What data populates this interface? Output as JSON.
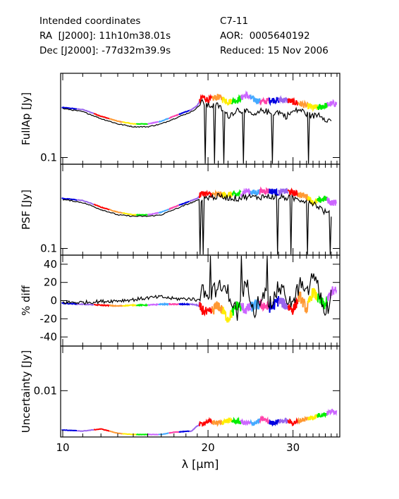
{
  "header": {
    "left": [
      "Intended coordinates",
      "RA  [J2000]: 11h10m38.01s",
      "Dec [J2000]: -77d32m39.9s"
    ],
    "right": [
      "C7-11",
      "AOR:  0005640192",
      "Reduced: 15 Nov 2006"
    ]
  },
  "chart_data": {
    "type": "line",
    "xlabel": "λ [μm]",
    "x_scale": "log",
    "xlim": [
      9.9,
      37.5
    ],
    "x_ticks": [
      10,
      20,
      30
    ],
    "x_tick_labels": [
      "10",
      "20",
      "30"
    ],
    "order_colors": [
      "#0000e0",
      "#9966ee",
      "#ff0000",
      "#ff9933",
      "#ffee00",
      "#00ee00",
      "#cc66ff",
      "#44aaff",
      "#ff44aa"
    ],
    "panels": [
      {
        "ylabel": "FullAp [Jy]",
        "y_scale": "log",
        "ylim": [
          0.088,
          0.5
        ],
        "y_ticks": [
          0.1
        ],
        "y_tick_labels": [
          "0.1"
        ],
        "series": [
          {
            "style": "colored-orders",
            "x": [
              10.0,
              11.0,
              12.0,
              13.0,
              14.0,
              15.0,
              16.0,
              17.0,
              18.5,
              19.0,
              19.5,
              20.0,
              21.0,
              22.0,
              23.0,
              24.0,
              25.0,
              26.0,
              27.0,
              28.0,
              29.0,
              30.0,
              31.0,
              32.0,
              33.0,
              34.0,
              35.0,
              36.0
            ],
            "y": [
              0.26,
              0.25,
              0.22,
              0.2,
              0.19,
              0.19,
              0.2,
              0.22,
              0.25,
              0.27,
              0.32,
              0.3,
              0.32,
              0.29,
              0.3,
              0.33,
              0.3,
              0.29,
              0.3,
              0.3,
              0.3,
              0.29,
              0.28,
              0.27,
              0.26,
              0.26,
              0.27,
              0.28
            ]
          },
          {
            "style": "black",
            "x": [
              10.0,
              11.0,
              12.0,
              13.0,
              14.0,
              15.0,
              16.0,
              17.0,
              18.5,
              19.0,
              19.5,
              20.0,
              21.0,
              22.0,
              23.0,
              24.0,
              25.0,
              26.0,
              27.0,
              28.0,
              29.0,
              30.0,
              31.0,
              32.0,
              33.0,
              34.0,
              35.0,
              36.0
            ],
            "y": [
              0.255,
              0.24,
              0.21,
              0.19,
              0.18,
              0.18,
              0.19,
              0.21,
              0.24,
              0.26,
              0.29,
              0.27,
              0.27,
              0.22,
              0.25,
              0.24,
              0.22,
              0.25,
              0.23,
              0.24,
              0.22,
              0.24,
              0.25,
              0.23,
              0.22,
              0.23,
              0.21,
              0.2
            ]
          }
        ]
      },
      {
        "ylabel": "PSF [Jy]",
        "y_scale": "log",
        "ylim": [
          0.088,
          0.5
        ],
        "y_ticks": [
          0.1
        ],
        "y_tick_labels": [
          "0.1"
        ],
        "series": [
          {
            "style": "colored-orders",
            "x": [
              10.0,
              11.0,
              12.0,
              13.0,
              14.0,
              15.0,
              16.0,
              17.0,
              18.5,
              19.0,
              19.5,
              20.0,
              21.0,
              22.0,
              23.0,
              24.0,
              25.0,
              26.0,
              27.0,
              28.0,
              29.0,
              30.0,
              31.0,
              32.0,
              33.0,
              34.0,
              35.0,
              36.0
            ],
            "y": [
              0.26,
              0.25,
              0.22,
              0.2,
              0.19,
              0.19,
              0.2,
              0.22,
              0.25,
              0.26,
              0.29,
              0.28,
              0.28,
              0.28,
              0.28,
              0.3,
              0.29,
              0.3,
              0.3,
              0.29,
              0.3,
              0.29,
              0.28,
              0.27,
              0.24,
              0.25,
              0.26,
              0.24
            ]
          },
          {
            "style": "black",
            "x": [
              10.0,
              11.0,
              12.0,
              13.0,
              14.0,
              15.0,
              16.0,
              17.0,
              18.5,
              19.0,
              19.5,
              20.0,
              21.0,
              22.0,
              23.0,
              24.0,
              25.0,
              26.0,
              27.0,
              28.0,
              29.0,
              30.0,
              31.0,
              32.0,
              33.0,
              34.0,
              35.0,
              36.0
            ],
            "y": [
              0.255,
              0.24,
              0.21,
              0.19,
              0.185,
              0.185,
              0.19,
              0.21,
              0.24,
              0.25,
              0.26,
              0.265,
              0.27,
              0.265,
              0.26,
              0.27,
              0.265,
              0.27,
              0.27,
              0.265,
              0.265,
              0.26,
              0.255,
              0.25,
              0.24,
              0.22,
              0.2,
              0.19
            ]
          }
        ]
      },
      {
        "ylabel": "% diff",
        "y_scale": "linear",
        "ylim": [
          -50,
          50
        ],
        "y_ticks": [
          -40,
          -20,
          0,
          20,
          40
        ],
        "y_tick_labels": [
          "-40",
          "-20",
          "0",
          "20",
          "40"
        ],
        "series": [
          {
            "style": "colored-orders",
            "x": [
              10.0,
              11.0,
              12.0,
              13.0,
              14.0,
              15.0,
              16.0,
              17.0,
              18.5,
              19.0,
              19.5,
              20.0,
              21.0,
              22.0,
              23.0,
              24.0,
              25.0,
              26.0,
              27.0,
              28.0,
              29.0,
              30.0,
              31.0,
              32.0,
              33.0,
              34.0,
              35.0,
              36.0
            ],
            "y": [
              -3,
              -4,
              -5,
              -6,
              -5,
              -5,
              -4,
              -4,
              -4,
              -5,
              -10,
              -15,
              -5,
              -20,
              -5,
              -10,
              -5,
              -5,
              -8,
              0,
              -5,
              -10,
              5,
              -10,
              10,
              0,
              -5,
              10
            ]
          },
          {
            "style": "black",
            "x": [
              10.0,
              11.0,
              12.0,
              13.0,
              14.0,
              15.0,
              16.0,
              17.0,
              18.5,
              19.0,
              19.5,
              20.0,
              21.0,
              22.0,
              23.0,
              24.0,
              25.0,
              26.0,
              27.0,
              28.0,
              29.0,
              30.0,
              31.0,
              32.0,
              33.0,
              34.0,
              35.0,
              36.0
            ],
            "y": [
              -2,
              -2,
              -1,
              0,
              1,
              3,
              4,
              2,
              2,
              0,
              10,
              5,
              15,
              10,
              -15,
              20,
              -10,
              10,
              -5,
              15,
              5,
              -5,
              20,
              5,
              30,
              10,
              -15,
              5
            ]
          }
        ]
      },
      {
        "ylabel": "Uncertainty [Jy]",
        "y_scale": "log",
        "ylim": [
          0.0032,
          0.03
        ],
        "y_ticks": [
          0.01
        ],
        "y_tick_labels": [
          "0.01"
        ],
        "series": [
          {
            "style": "colored-orders",
            "x": [
              10.0,
              11.0,
              12.0,
              13.0,
              14.0,
              15.0,
              16.0,
              17.0,
              18.5,
              19.0,
              19.5,
              20.0,
              21.0,
              22.0,
              23.0,
              24.0,
              25.0,
              26.0,
              27.0,
              28.0,
              29.0,
              30.0,
              31.0,
              32.0,
              33.0,
              34.0,
              35.0,
              36.0
            ],
            "y": [
              0.0038,
              0.0037,
              0.0039,
              0.0035,
              0.0034,
              0.0034,
              0.0034,
              0.0036,
              0.0037,
              0.0042,
              0.0045,
              0.0047,
              0.0045,
              0.0048,
              0.0047,
              0.0045,
              0.0045,
              0.005,
              0.0045,
              0.0047,
              0.0048,
              0.0045,
              0.0048,
              0.005,
              0.0052,
              0.0055,
              0.0056,
              0.006
            ]
          }
        ]
      }
    ]
  }
}
